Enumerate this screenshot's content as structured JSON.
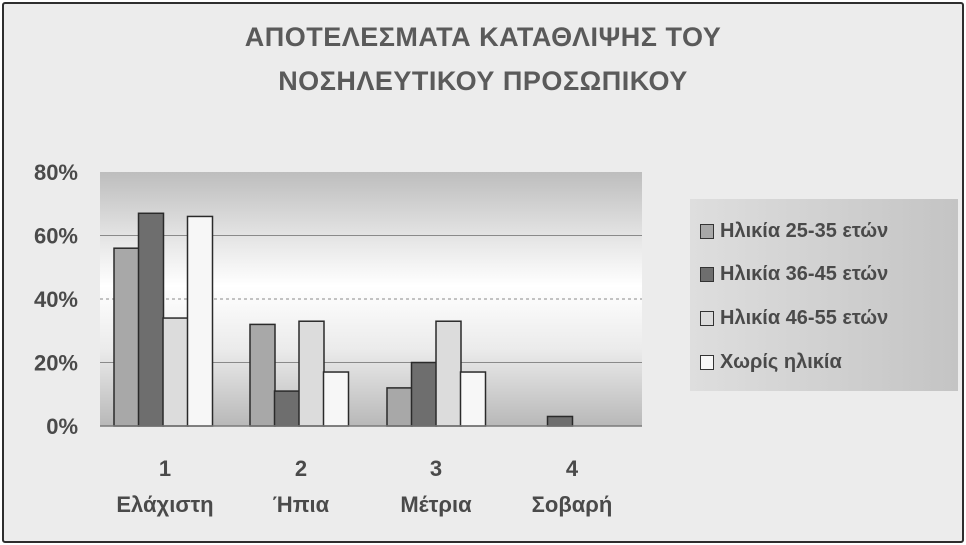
{
  "chart_data": {
    "type": "bar",
    "title_lines": [
      "ΑΠΟΤΕΛΕΣΜΑΤΑ ΚΑΤΑΘΛΙΨΗΣ ΤΟΥ",
      "ΝΟΣΗΛΕΥΤΙΚΟΥ ΠΡΟΣΩΠΙΚΟΥ"
    ],
    "categories": [
      {
        "number": "1",
        "label": "Ελάχιστη"
      },
      {
        "number": "2",
        "label": "Ήπια"
      },
      {
        "number": "3",
        "label": "Μέτρια"
      },
      {
        "number": "4",
        "label": "Σοβαρή"
      }
    ],
    "series": [
      {
        "name": "Ηλικία 25-35 ετών",
        "color": "#a8a8a8",
        "values": [
          56,
          32,
          12,
          0
        ]
      },
      {
        "name": "Ηλικία 36-45 ετών",
        "color": "#6e6e6e",
        "values": [
          67,
          11,
          20,
          3
        ]
      },
      {
        "name": "Ηλικία 46-55 ετών",
        "color": "#dcdcdc",
        "values": [
          34,
          33,
          33,
          0
        ]
      },
      {
        "name": "Χωρίς ηλικία",
        "color": "#f7f7f7",
        "values": [
          66,
          17,
          17,
          0
        ]
      }
    ],
    "yaxis": {
      "min": 0,
      "max": 80,
      "ticks": [
        "0%",
        "20%",
        "40%",
        "60%",
        "80%"
      ]
    },
    "grid": true,
    "legend": "right",
    "xlabel": "",
    "ylabel": ""
  }
}
